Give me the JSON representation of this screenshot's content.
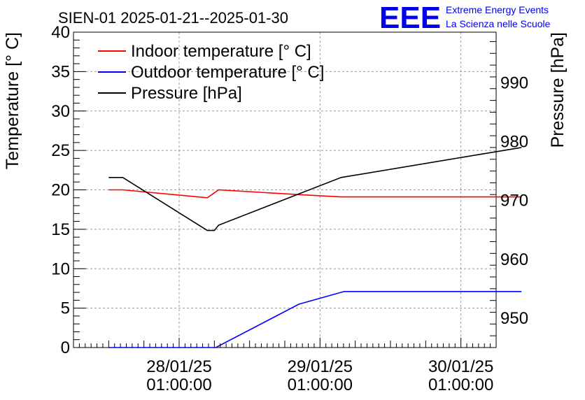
{
  "chart_data": {
    "type": "line",
    "title": "SIEN-01 2025-01-21--2025-01-30",
    "ylabel": "Temperature [° C]",
    "y2label": "Pressure [hPa]",
    "ylim": [
      0,
      40
    ],
    "y2lim": [
      945,
      998.6
    ],
    "xlim": [
      0.0,
      3.0
    ],
    "yticks": [
      0,
      5,
      10,
      15,
      20,
      25,
      30,
      35,
      40
    ],
    "y2ticks": [
      950,
      960,
      970,
      980,
      990
    ],
    "xticks": [
      {
        "x": 0.75,
        "line1": "28/01/25",
        "line2": "01:00:00"
      },
      {
        "x": 1.75,
        "line1": "29/01/25",
        "line2": "01:00:00"
      },
      {
        "x": 2.75,
        "line1": "30/01/25",
        "line2": "01:00:00"
      }
    ],
    "grid": true,
    "legend_position": "top-left",
    "series": [
      {
        "name": "Indoor temperature [° C]",
        "axis": "left",
        "color": "#ff0000",
        "x": [
          0.25,
          0.35,
          0.95,
          1.03,
          1.6,
          1.9,
          3.18
        ],
        "y": [
          20.0,
          20.0,
          19.0,
          20.0,
          19.4,
          19.1,
          19.1
        ]
      },
      {
        "name": "Outdoor temperature [° C]",
        "axis": "left",
        "color": "#0000ff",
        "x": [
          0.25,
          1.01,
          1.6,
          1.92,
          3.18
        ],
        "y": [
          0.0,
          0.0,
          5.5,
          7.1,
          7.1
        ]
      },
      {
        "name": "Pressure [hPa]",
        "axis": "right",
        "color": "#000000",
        "x": [
          0.25,
          0.35,
          0.95,
          1.0,
          1.03,
          1.9,
          3.18
        ],
        "y": [
          973.9,
          973.9,
          964.9,
          964.9,
          965.8,
          973.9,
          979.0
        ]
      }
    ]
  },
  "logo": {
    "text": "EEE",
    "line1": "Extreme Energy Events",
    "line2": "La Scienza nelle Scuole",
    "color": "#0000ee"
  }
}
